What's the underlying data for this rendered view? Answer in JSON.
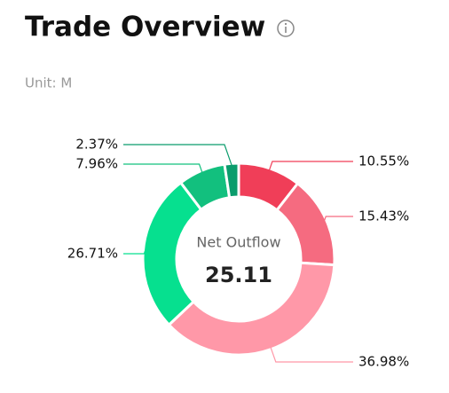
{
  "chart_data": {
    "type": "donut",
    "title": "Trade Overview",
    "subtitle": "Unit: M",
    "center_label": "Net Outflow",
    "center_value": "25.11",
    "values": [
      10.55,
      15.43,
      36.98,
      26.71,
      7.96,
      2.37
    ],
    "value_labels": [
      "10.55%",
      "15.43%",
      "36.98%",
      "26.71%",
      "7.96%",
      "2.37%"
    ],
    "colors": [
      "#f03e58",
      "#f56b80",
      "#ff98a8",
      "#06e08f",
      "#12c07e",
      "#0a9c6c"
    ]
  }
}
